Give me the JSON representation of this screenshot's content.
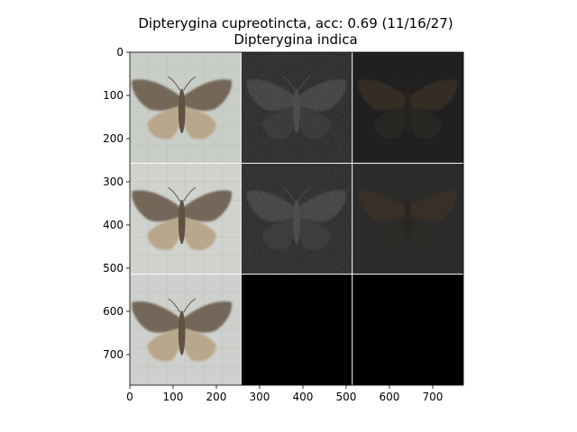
{
  "chart_data": {
    "type": "image-grid",
    "title": "Dipterygina cupreotincta, acc: 0.69 (11/16/27)",
    "subtitle": "Dipterygina indica",
    "xlim": [
      0,
      771
    ],
    "ylim": [
      771,
      0
    ],
    "x_ticks": [
      0,
      100,
      200,
      300,
      400,
      500,
      600,
      700
    ],
    "y_ticks": [
      0,
      100,
      200,
      300,
      400,
      500,
      600,
      700
    ],
    "grid": {
      "rows": 3,
      "cols": 3,
      "cell_size": 257
    },
    "cells": [
      {
        "row": 0,
        "col": 0,
        "kind": "photo",
        "bg": "#c9cdc8"
      },
      {
        "row": 0,
        "col": 1,
        "kind": "noise",
        "bg": "#1a1a1a"
      },
      {
        "row": 0,
        "col": 2,
        "kind": "faint",
        "bg": "#202020"
      },
      {
        "row": 1,
        "col": 0,
        "kind": "photo",
        "bg": "#cfd2cd"
      },
      {
        "row": 1,
        "col": 1,
        "kind": "noise",
        "bg": "#1b1b1b"
      },
      {
        "row": 1,
        "col": 2,
        "kind": "faint",
        "bg": "#2b2b2b"
      },
      {
        "row": 2,
        "col": 0,
        "kind": "photo",
        "bg": "#cdd0cc"
      },
      {
        "row": 2,
        "col": 1,
        "kind": "black",
        "bg": "#000000"
      },
      {
        "row": 2,
        "col": 2,
        "kind": "black",
        "bg": "#000000"
      }
    ]
  }
}
